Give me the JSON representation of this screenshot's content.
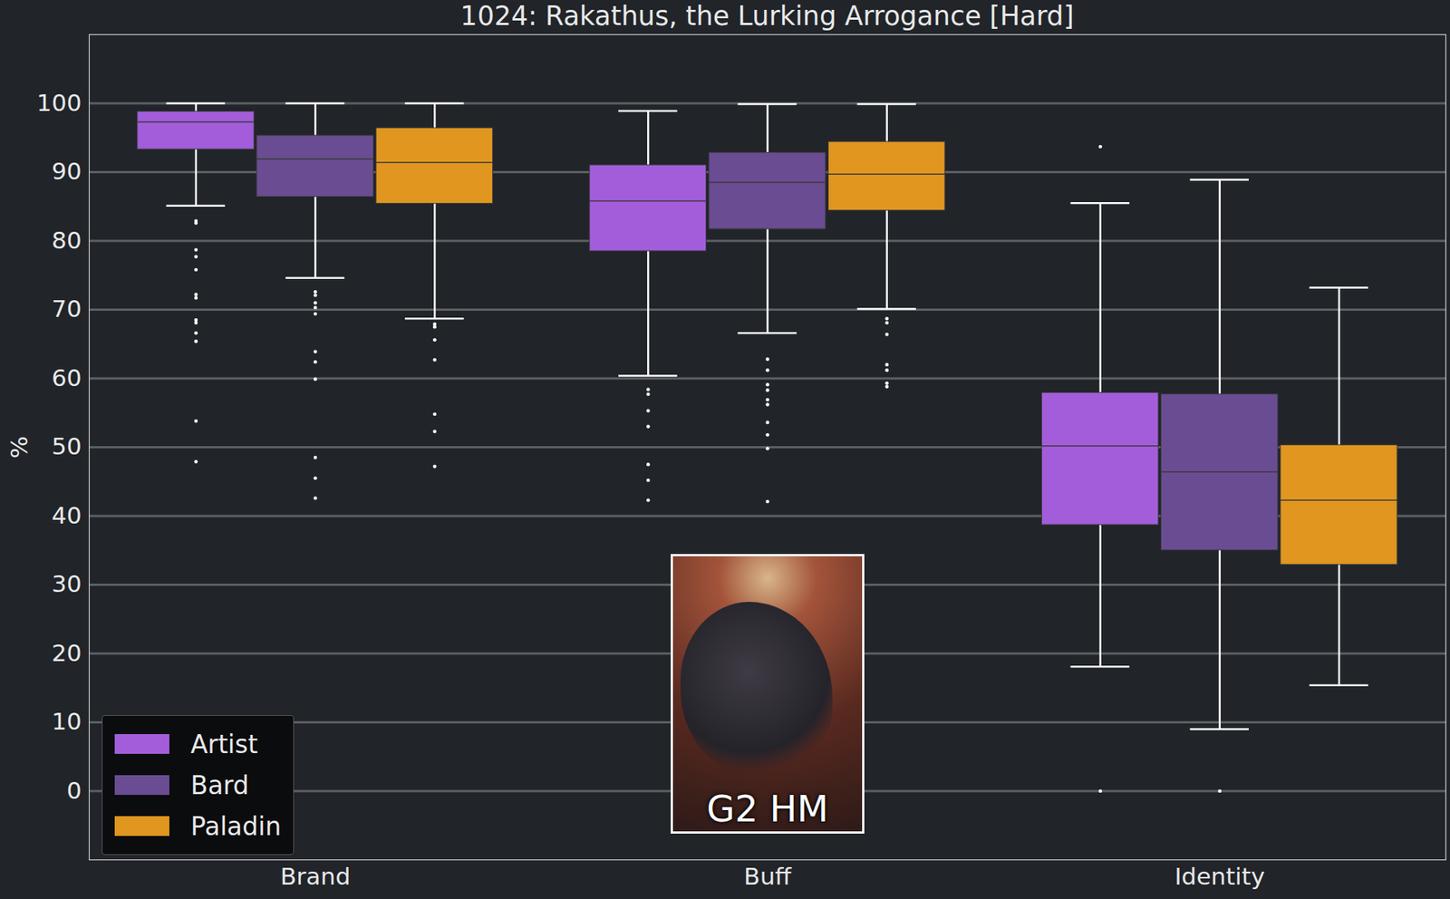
{
  "chart_data": {
    "type": "box",
    "title": "1024: Rakathus, the Lurking Arrogance [Hard]",
    "y_label": "%",
    "categories": [
      "Brand",
      "Buff",
      "Identity"
    ],
    "ylim": [
      -10,
      110
    ],
    "yticks": [
      0,
      10,
      20,
      30,
      40,
      50,
      60,
      70,
      80,
      90,
      100
    ],
    "grid": true,
    "legend": "lower left",
    "annotations": [
      "G2 HM"
    ],
    "series": [
      {
        "name": "Artist",
        "color": "#a35ddb",
        "values": [
          {
            "whislo": 85.1,
            "q1": 93.3,
            "median": 97.3,
            "q3": 98.8,
            "whishi": 100,
            "fliers": [
              82.9,
              82.6,
              78.7,
              77.7,
              75.8,
              72.2,
              71.7,
              68.5,
              68.1,
              66.6,
              65.4,
              53.8,
              47.9
            ]
          },
          {
            "whislo": 60.4,
            "q1": 78.5,
            "median": 85.8,
            "q3": 91.0,
            "whishi": 98.9,
            "fliers": [
              58.4,
              57.7,
              55.3,
              53.0,
              47.5,
              45.2,
              42.3
            ]
          },
          {
            "whislo": 18.1,
            "q1": 38.7,
            "median": 50.2,
            "q3": 57.9,
            "whishi": 85.5,
            "fliers": [
              93.7,
              0
            ]
          }
        ]
      },
      {
        "name": "Bard",
        "color": "#6a4c93",
        "values": [
          {
            "whislo": 74.6,
            "q1": 86.4,
            "median": 91.9,
            "q3": 95.3,
            "whishi": 100,
            "fliers": [
              72.6,
              72.1,
              71.0,
              70.3,
              69.4,
              63.9,
              62.4,
              59.9,
              48.5,
              45.5,
              42.6
            ]
          },
          {
            "whislo": 66.6,
            "q1": 81.7,
            "median": 88.5,
            "q3": 92.8,
            "whishi": 99.9,
            "fliers": [
              62.8,
              61.2,
              59.1,
              58.3,
              56.9,
              56.2,
              53.6,
              51.8,
              49.8,
              42.1
            ]
          },
          {
            "whislo": 9.0,
            "q1": 35.0,
            "median": 46.4,
            "q3": 57.7,
            "whishi": 88.9,
            "fliers": [
              0
            ]
          }
        ]
      },
      {
        "name": "Paladin",
        "color": "#e0961f",
        "values": [
          {
            "whislo": 68.7,
            "q1": 85.4,
            "median": 91.4,
            "q3": 96.4,
            "whishi": 100,
            "fliers": [
              67.9,
              67.5,
              65.6,
              62.7,
              54.8,
              52.3,
              47.2
            ]
          },
          {
            "whislo": 70.1,
            "q1": 84.4,
            "median": 89.7,
            "q3": 94.4,
            "whishi": 99.9,
            "fliers": [
              68.7,
              68.1,
              66.4,
              62.0,
              61.2,
              59.3,
              58.8
            ]
          },
          {
            "whislo": 15.4,
            "q1": 32.9,
            "median": 42.3,
            "q3": 50.3,
            "whishi": 73.2,
            "fliers": []
          }
        ]
      }
    ]
  }
}
